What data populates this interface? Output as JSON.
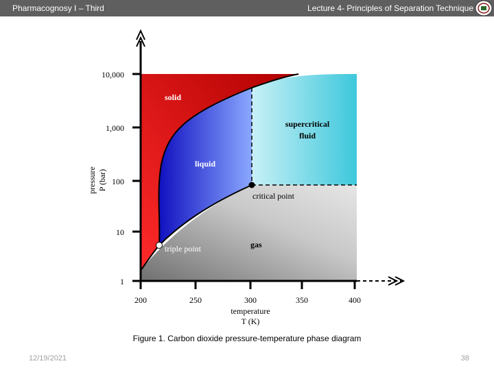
{
  "header": {
    "left_title": "Pharmacognosy I – Third",
    "right_title": "Lecture 4- Principles of Separation Technique"
  },
  "chart_data": {
    "type": "diagram",
    "y_axis": {
      "label_line1": "pressure",
      "label_line2": "P (bar)",
      "scale": "log",
      "ticks": [
        "10,000",
        "1,000",
        "100",
        "10",
        "1"
      ]
    },
    "x_axis": {
      "label_line1": "temperature",
      "label_line2": "T (K)",
      "ticks": [
        "200",
        "250",
        "300",
        "350",
        "400"
      ]
    },
    "regions": {
      "solid": "solid",
      "liquid": "liquid",
      "supercritical": "supercritical",
      "supercritical_line2": "fluid",
      "gas": "gas"
    },
    "points": {
      "critical": "critical point",
      "triple": "triple point"
    },
    "colors": {
      "solid": "#e81c1c",
      "liquid": "#2020d0",
      "supercritical": "#5ad0e0",
      "gas": "#a0a0a0"
    }
  },
  "caption": "Figure 1. Carbon dioxide pressure-temperature phase diagram",
  "footer": {
    "date": "12/19/2021",
    "page": "38"
  }
}
